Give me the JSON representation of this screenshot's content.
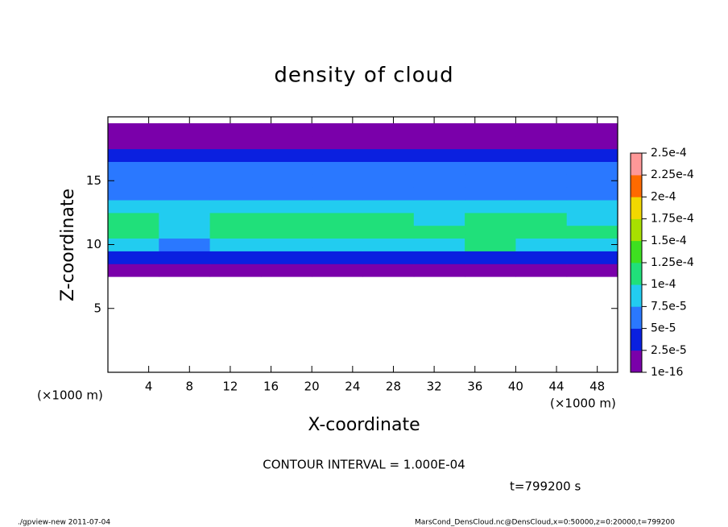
{
  "chart_data": {
    "type": "heatmap",
    "title": "density of cloud",
    "x_label": "X-coordinate",
    "y_label": "Z-coordinate",
    "x_unit": "(×1000 m)",
    "y_unit": "(×1000 m)",
    "xlim": [
      0,
      50
    ],
    "ylim": [
      0,
      20
    ],
    "xticks": [
      4,
      8,
      12,
      16,
      20,
      24,
      28,
      32,
      36,
      40,
      44,
      48
    ],
    "yticks": [
      5,
      10,
      15
    ],
    "x": [
      2.5,
      7.5,
      12.5,
      17.5,
      22.5,
      27.5,
      32.5,
      37.5,
      42.5,
      47.5
    ],
    "y": [
      8,
      9,
      10,
      11,
      12,
      13,
      14,
      15,
      16,
      17,
      18,
      19
    ],
    "z": [
      [
        1e-05,
        1e-05,
        1e-05,
        1e-05,
        1e-05,
        1e-05,
        1e-05,
        1e-05,
        1e-05,
        1e-05
      ],
      [
        4e-05,
        3e-05,
        4e-05,
        4e-05,
        4e-05,
        4e-05,
        4e-05,
        4e-05,
        4e-05,
        4e-05
      ],
      [
        9e-05,
        6e-05,
        8e-05,
        9e-05,
        9e-05,
        9e-05,
        9e-05,
        0.0001,
        8e-05,
        9e-05
      ],
      [
        0.00011,
        9e-05,
        0.0001,
        0.00011,
        0.00011,
        0.00011,
        0.00011,
        0.00012,
        0.00011,
        0.0001
      ],
      [
        0.0001,
        8e-05,
        0.0001,
        0.00011,
        0.00011,
        0.00011,
        9e-05,
        0.00011,
        0.0001,
        9e-05
      ],
      [
        8e-05,
        8e-05,
        8e-05,
        9e-05,
        9e-05,
        9e-05,
        8e-05,
        8e-05,
        8e-05,
        8e-05
      ],
      [
        7e-05,
        7e-05,
        7e-05,
        7e-05,
        6e-05,
        7e-05,
        7e-05,
        7e-05,
        7e-05,
        7e-05
      ],
      [
        6e-05,
        6e-05,
        6e-05,
        6e-05,
        5e-05,
        6e-05,
        6e-05,
        6e-05,
        6e-05,
        6e-05
      ],
      [
        5e-05,
        5e-05,
        5e-05,
        5e-05,
        5e-05,
        5e-05,
        5e-05,
        5e-05,
        5e-05,
        5e-05
      ],
      [
        3e-05,
        3e-05,
        3e-05,
        3e-05,
        3e-05,
        3e-05,
        3e-05,
        3e-05,
        3e-05,
        3e-05
      ],
      [
        1e-05,
        1e-05,
        1e-05,
        1e-05,
        1e-05,
        1e-05,
        1e-05,
        1e-05,
        1e-05,
        1e-05
      ],
      [
        1e-05,
        1e-05,
        1e-05,
        1e-05,
        1e-05,
        1e-05,
        1e-05,
        1e-05,
        1e-05,
        1e-05
      ]
    ],
    "levels": [
      {
        "value": 1e-16,
        "label": "1e-16"
      },
      {
        "value": 2.5e-05,
        "label": "2.5e-5"
      },
      {
        "value": 5e-05,
        "label": "5e-5"
      },
      {
        "value": 7.5e-05,
        "label": "7.5e-5"
      },
      {
        "value": 0.0001,
        "label": "1e-4"
      },
      {
        "value": 0.000125,
        "label": "1.25e-4"
      },
      {
        "value": 0.00015,
        "label": "1.5e-4"
      },
      {
        "value": 0.000175,
        "label": "1.75e-4"
      },
      {
        "value": 0.0002,
        "label": "2e-4"
      },
      {
        "value": 0.000225,
        "label": "2.25e-4"
      },
      {
        "value": 0.00025,
        "label": "2.5e-4"
      }
    ],
    "colors": [
      "#7a00aa",
      "#0a20e0",
      "#2a78ff",
      "#22ccf0",
      "#20e07a",
      "#3ee020",
      "#a8e000",
      "#f2d800",
      "#ff6a00",
      "#ff9898"
    ],
    "contour_note": "CONTOUR INTERVAL = 1.000E-04",
    "time_note": "t=799200 s",
    "footer_left": "./gpview-new  2011-07-04",
    "footer_right": "MarsCond_DensCloud.nc@DensCloud,x=0:50000,z=0:20000,t=799200"
  }
}
